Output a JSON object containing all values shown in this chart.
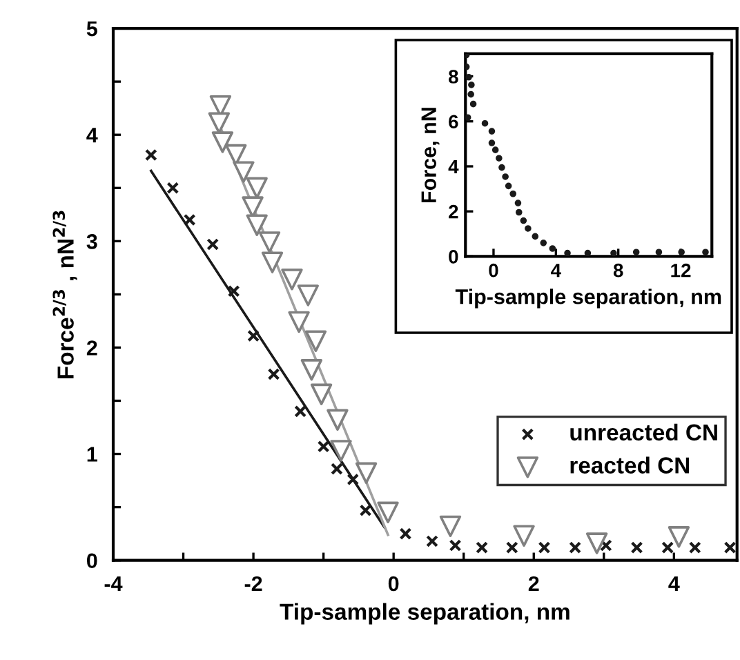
{
  "chart_data": [
    {
      "type": "scatter",
      "xlabel": "Tip-sample separation, nm",
      "ylabel": "Force$^{2/3}$ , nN$^{2/3}$",
      "xlim": [
        -4,
        4.9
      ],
      "xticks": [
        -4,
        {
          "value": -3,
          "label": null
        },
        -2,
        {
          "value": -1,
          "label": null
        },
        0,
        {
          "value": 1,
          "label": null
        },
        2,
        {
          "value": 3,
          "label": null
        },
        4
      ],
      "ylim": [
        0,
        5
      ],
      "yticks": [
        0,
        {
          "value": 0.5,
          "label": null
        },
        1,
        {
          "value": 1.5,
          "label": null
        },
        2,
        {
          "value": 2.5,
          "label": null
        },
        3,
        {
          "value": 3.5,
          "label": null
        },
        4,
        {
          "value": 4.5,
          "label": null
        },
        5
      ],
      "grid": false,
      "legend": "bottom right",
      "series": [
        {
          "name": "unreacted CN",
          "type": "scatter",
          "marker": "cross",
          "color": "#1a1a1a",
          "x": [
            -3.46,
            -3.15,
            -2.91,
            -2.58,
            -2.28,
            -2.0,
            -1.71,
            -1.33,
            -1.0,
            -0.81,
            -0.58,
            -0.4,
            0.17,
            0.55,
            0.88,
            1.26,
            1.69,
            2.15,
            2.59,
            3.03,
            3.47,
            3.91,
            4.3,
            4.8
          ],
          "values": [
            3.81,
            3.5,
            3.2,
            2.97,
            2.53,
            2.11,
            1.75,
            1.4,
            1.07,
            0.86,
            0.76,
            0.47,
            0.25,
            0.18,
            0.14,
            0.12,
            0.12,
            0.12,
            0.12,
            0.14,
            0.12,
            0.12,
            0.12,
            0.12
          ]
        },
        {
          "name": "reacted CN",
          "type": "scatter",
          "marker": "triangle",
          "color": "#808080",
          "x": [
            -2.47,
            -2.49,
            -2.44,
            -2.25,
            -2.14,
            -1.95,
            -2.01,
            -1.95,
            -1.77,
            -1.73,
            -1.45,
            -1.22,
            -1.35,
            -1.11,
            -1.17,
            -1.03,
            -0.8,
            -0.75,
            -0.39,
            -0.08,
            0.81,
            1.86,
            2.9,
            4.07
          ],
          "values": [
            4.27,
            4.11,
            3.93,
            3.81,
            3.65,
            3.5,
            3.32,
            3.15,
            2.99,
            2.8,
            2.64,
            2.49,
            2.24,
            2.06,
            1.79,
            1.56,
            1.32,
            1.03,
            0.82,
            0.45,
            0.32,
            0.23,
            0.16,
            0.22
          ]
        },
        {
          "type": "line",
          "line_style": "solid",
          "color": "#1a1a1a",
          "x": [
            -3.46,
            -0.13
          ],
          "values": [
            3.66,
            0.31
          ]
        },
        {
          "type": "line",
          "line_style": "solid",
          "color": "#a0a0a0",
          "x": [
            -2.49,
            -0.08
          ],
          "values": [
            4.1,
            0.24
          ]
        }
      ]
    },
    {
      "type": "scatter",
      "xlabel": "Tip-sample separation, nm",
      "ylabel": "Force, nN",
      "xlim": [
        -1.8,
        14
      ],
      "xticks": [
        0,
        4,
        8,
        12
      ],
      "ylim": [
        0,
        9
      ],
      "yticks": [
        0,
        2,
        4,
        6,
        8
      ],
      "grid": false,
      "marker": "circle",
      "series": [
        {
          "color": "#1a1a1a",
          "x": [
            -1.74,
            -1.74,
            -1.59,
            -1.42,
            -1.45,
            -1.3,
            -1.65,
            -0.55,
            -0.11,
            -0.11,
            0.12,
            0.35,
            0.53,
            0.76,
            0.96,
            1.25,
            1.57,
            1.63,
            1.92,
            2.21,
            2.67,
            3.2,
            3.78,
            4.74,
            6.04,
            7.7,
            9.15,
            10.6,
            12.05,
            13.59
          ],
          "values": [
            8.95,
            8.42,
            7.96,
            7.62,
            7.2,
            6.77,
            6.17,
            5.91,
            5.56,
            5.04,
            4.73,
            4.36,
            3.95,
            3.54,
            3.13,
            2.78,
            2.37,
            1.96,
            1.59,
            1.24,
            0.89,
            0.6,
            0.35,
            0.15,
            0.15,
            0.15,
            0.19,
            0.19,
            0.19,
            0.19
          ]
        }
      ]
    }
  ]
}
